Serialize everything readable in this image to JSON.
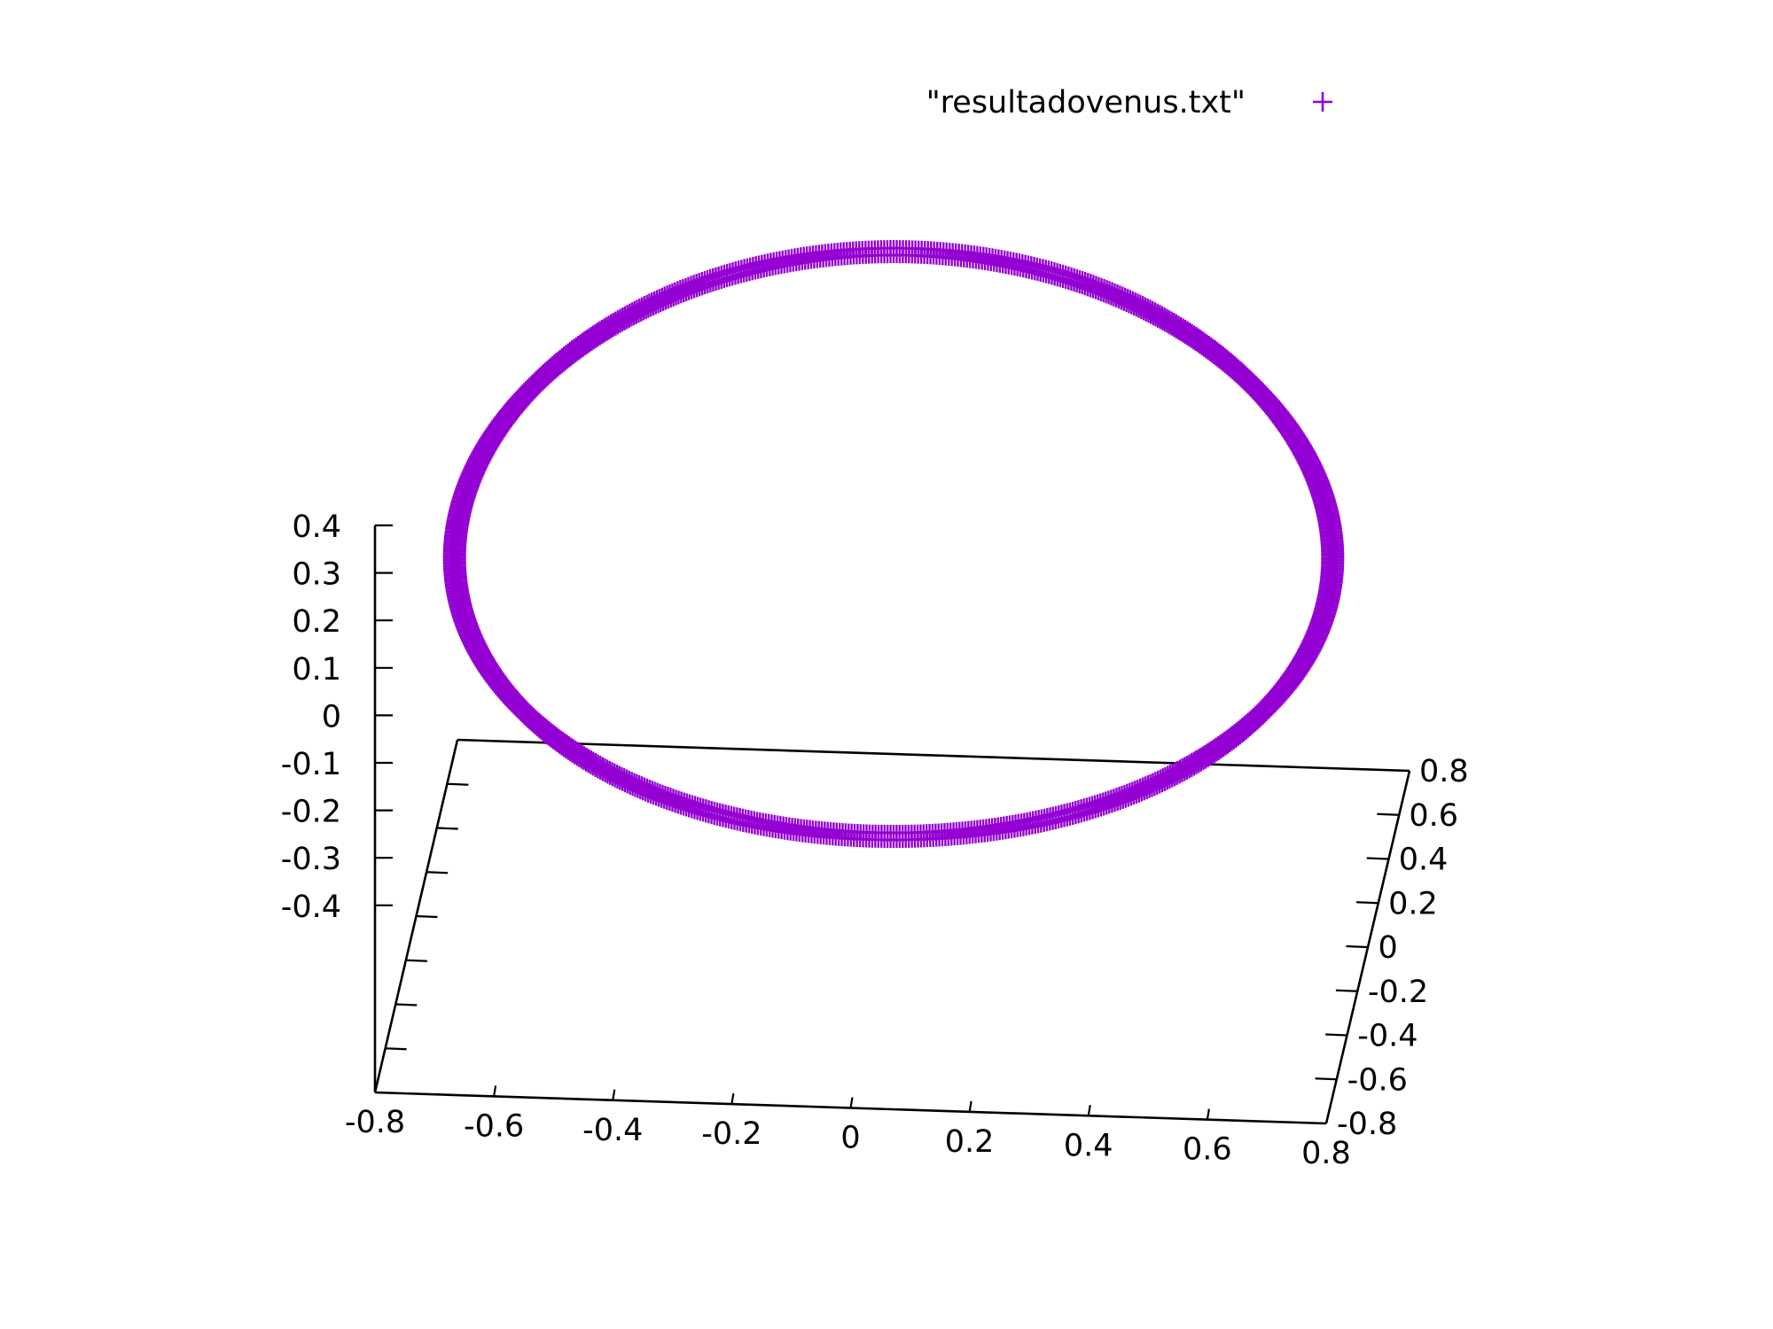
{
  "chart_data": {
    "type": "scatter",
    "projection": "3d",
    "series": [
      {
        "name": "\"resultadovenus.txt\"",
        "marker": "+",
        "color": "#9400d3",
        "shape": "closed circular orbit of radius ~0.72 centred near (0.0, 0.0), inclined relative to the x-y plane; approx. 10 sampled points of the continuous curve",
        "points": [
          {
            "x": 0.72,
            "y": 0.0,
            "z": 0.0
          },
          {
            "x": 0.51,
            "y": 0.51,
            "z": 0.01
          },
          {
            "x": 0.0,
            "y": 0.72,
            "z": 0.02
          },
          {
            "x": -0.51,
            "y": 0.51,
            "z": 0.01
          },
          {
            "x": -0.72,
            "y": 0.0,
            "z": 0.0
          },
          {
            "x": -0.51,
            "y": -0.51,
            "z": -0.01
          },
          {
            "x": 0.0,
            "y": -0.72,
            "z": -0.02
          },
          {
            "x": 0.51,
            "y": -0.51,
            "z": -0.01
          }
        ]
      }
    ],
    "x_axis": {
      "range": [
        -0.8,
        0.8
      ],
      "ticks": [
        "-0.8",
        "-0.6",
        "-0.4",
        "-0.2",
        "0",
        "0.2",
        "0.4",
        "0.6",
        "0.8"
      ]
    },
    "y_axis": {
      "range": [
        -0.8,
        0.8
      ],
      "ticks": [
        "-0.8",
        "-0.6",
        "-0.4",
        "-0.2",
        "0",
        "0.2",
        "0.4",
        "0.6",
        "0.8"
      ]
    },
    "z_axis": {
      "range": [
        -0.4,
        0.4
      ],
      "ticks": [
        "0.4",
        "0.3",
        "0.2",
        "0.1",
        "0",
        "-0.1",
        "-0.2",
        "-0.3",
        "-0.4"
      ]
    },
    "legend": {
      "placement": "top-right",
      "entries": [
        {
          "label": "\"resultadovenus.txt\"",
          "symbol": "+"
        }
      ]
    },
    "grid": false
  }
}
